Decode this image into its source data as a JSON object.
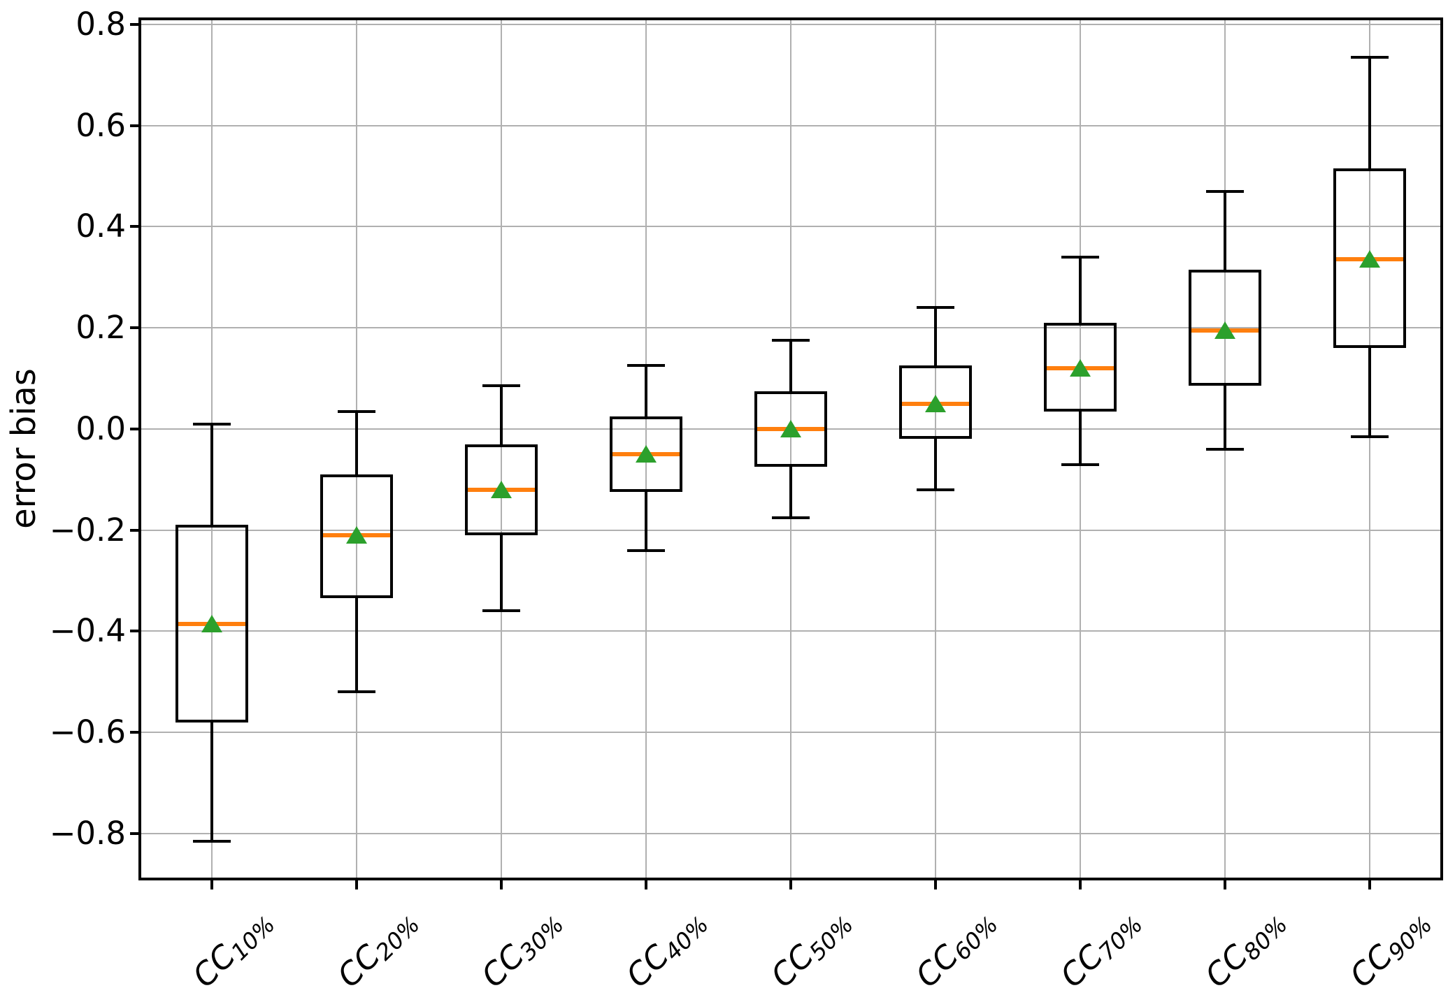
{
  "chart_data": {
    "type": "box",
    "title": "",
    "xlabel": "",
    "ylabel": "error bias",
    "ylim": [
      -0.89,
      0.811
    ],
    "grid": true,
    "legend": "none",
    "ytick_values": [
      0.8,
      0.6,
      0.4,
      0.2,
      0.0,
      -0.2,
      -0.4,
      -0.6,
      -0.8
    ],
    "ytick_labels": [
      "0.8",
      "0.6",
      "0.4",
      "0.2",
      "0.0",
      "−0.2",
      "−0.4",
      "−0.6",
      "−0.8"
    ],
    "categories": [
      {
        "prefix": "CC",
        "subscript": "10%"
      },
      {
        "prefix": "CC",
        "subscript": "20%"
      },
      {
        "prefix": "CC",
        "subscript": "30%"
      },
      {
        "prefix": "CC",
        "subscript": "40%"
      },
      {
        "prefix": "CC",
        "subscript": "50%"
      },
      {
        "prefix": "CC",
        "subscript": "60%"
      },
      {
        "prefix": "CC",
        "subscript": "70%"
      },
      {
        "prefix": "CC",
        "subscript": "80%"
      },
      {
        "prefix": "CC",
        "subscript": "90%"
      }
    ],
    "series": [
      {
        "whislo": -0.815,
        "q1": -0.58,
        "med": -0.385,
        "q3": -0.19,
        "whishi": 0.01,
        "mean": -0.385
      },
      {
        "whislo": -0.52,
        "q1": -0.335,
        "med": -0.21,
        "q3": -0.09,
        "whishi": 0.035,
        "mean": -0.21
      },
      {
        "whislo": -0.36,
        "q1": -0.21,
        "med": -0.12,
        "q3": -0.03,
        "whishi": 0.085,
        "mean": -0.12
      },
      {
        "whislo": -0.24,
        "q1": -0.125,
        "med": -0.05,
        "q3": 0.025,
        "whishi": 0.125,
        "mean": -0.05
      },
      {
        "whislo": -0.175,
        "q1": -0.075,
        "med": 0.0,
        "q3": 0.075,
        "whishi": 0.175,
        "mean": 0.0
      },
      {
        "whislo": -0.12,
        "q1": -0.02,
        "med": 0.05,
        "q3": 0.125,
        "whishi": 0.24,
        "mean": 0.05
      },
      {
        "whislo": -0.07,
        "q1": 0.035,
        "med": 0.12,
        "q3": 0.21,
        "whishi": 0.34,
        "mean": 0.12
      },
      {
        "whislo": -0.04,
        "q1": 0.085,
        "med": 0.195,
        "q3": 0.315,
        "whishi": 0.47,
        "mean": 0.195
      },
      {
        "whislo": -0.015,
        "q1": 0.16,
        "med": 0.335,
        "q3": 0.515,
        "whishi": 0.735,
        "mean": 0.335
      }
    ],
    "colors": {
      "box_edge": "#000000",
      "median": "#ff7f0e",
      "mean_marker": "#2ca02c",
      "grid": "#b0b0b0",
      "background": "#ffffff"
    }
  }
}
